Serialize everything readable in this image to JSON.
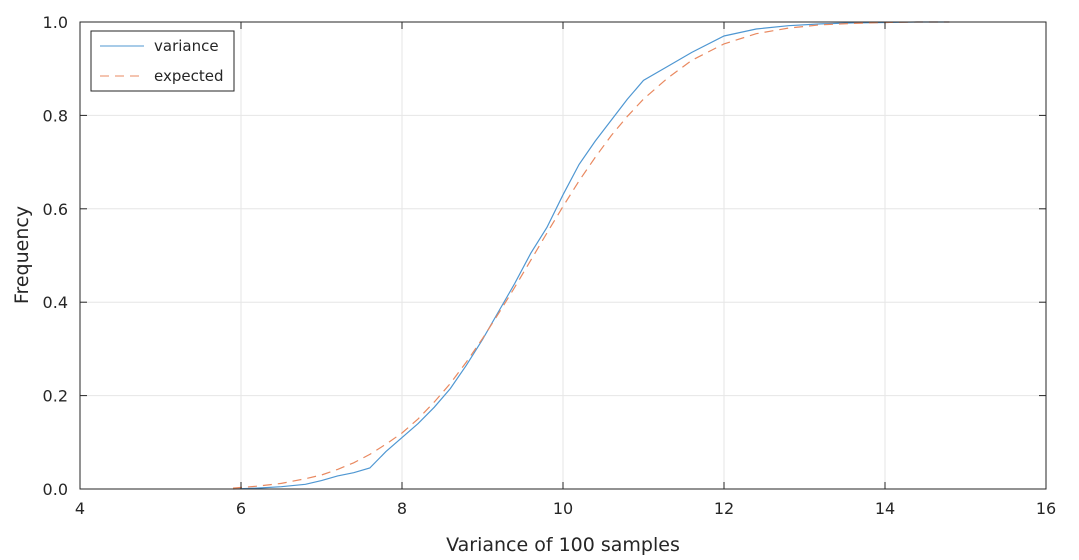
{
  "chart_data": {
    "type": "line",
    "title": "",
    "xlabel": "Variance of 100 samples",
    "ylabel": "Frequency",
    "xlim": [
      4,
      16
    ],
    "ylim": [
      0,
      1
    ],
    "x_ticks": [
      "4",
      "6",
      "8",
      "10",
      "12",
      "14",
      "16"
    ],
    "y_ticks": [
      "0.0",
      "0.2",
      "0.4",
      "0.6",
      "0.8",
      "1.0"
    ],
    "grid": true,
    "legend_position": "top-left",
    "series": [
      {
        "name": "variance",
        "style": "solid",
        "color": "#4f97d2",
        "x": [
          5.9,
          6.2,
          6.5,
          6.8,
          7.0,
          7.2,
          7.4,
          7.6,
          7.8,
          8.0,
          8.2,
          8.4,
          8.6,
          8.8,
          9.0,
          9.2,
          9.4,
          9.6,
          9.8,
          10.0,
          10.2,
          10.4,
          10.6,
          10.8,
          11.0,
          11.3,
          11.6,
          12.0,
          12.4,
          12.8,
          13.2,
          13.6,
          14.0,
          14.4,
          14.8
        ],
        "y": [
          0.0,
          0.002,
          0.005,
          0.01,
          0.018,
          0.028,
          0.035,
          0.045,
          0.08,
          0.11,
          0.14,
          0.175,
          0.215,
          0.265,
          0.32,
          0.38,
          0.44,
          0.505,
          0.56,
          0.63,
          0.695,
          0.745,
          0.79,
          0.835,
          0.875,
          0.905,
          0.935,
          0.97,
          0.985,
          0.992,
          0.996,
          0.998,
          0.999,
          1.0,
          1.0
        ]
      },
      {
        "name": "expected",
        "style": "dashed",
        "color": "#e98960",
        "x": [
          5.9,
          6.2,
          6.5,
          6.8,
          7.0,
          7.2,
          7.4,
          7.6,
          7.8,
          8.0,
          8.2,
          8.4,
          8.6,
          8.8,
          9.0,
          9.2,
          9.4,
          9.6,
          9.8,
          10.0,
          10.2,
          10.4,
          10.6,
          10.8,
          11.0,
          11.3,
          11.6,
          12.0,
          12.4,
          12.8,
          13.2,
          13.6,
          14.0,
          14.4,
          14.8
        ],
        "y": [
          0.002,
          0.006,
          0.012,
          0.022,
          0.03,
          0.042,
          0.056,
          0.074,
          0.096,
          0.12,
          0.15,
          0.186,
          0.226,
          0.272,
          0.322,
          0.376,
          0.432,
          0.49,
          0.548,
          0.605,
          0.66,
          0.71,
          0.757,
          0.798,
          0.835,
          0.88,
          0.918,
          0.953,
          0.975,
          0.987,
          0.994,
          0.997,
          0.999,
          1.0,
          1.0
        ]
      }
    ]
  }
}
